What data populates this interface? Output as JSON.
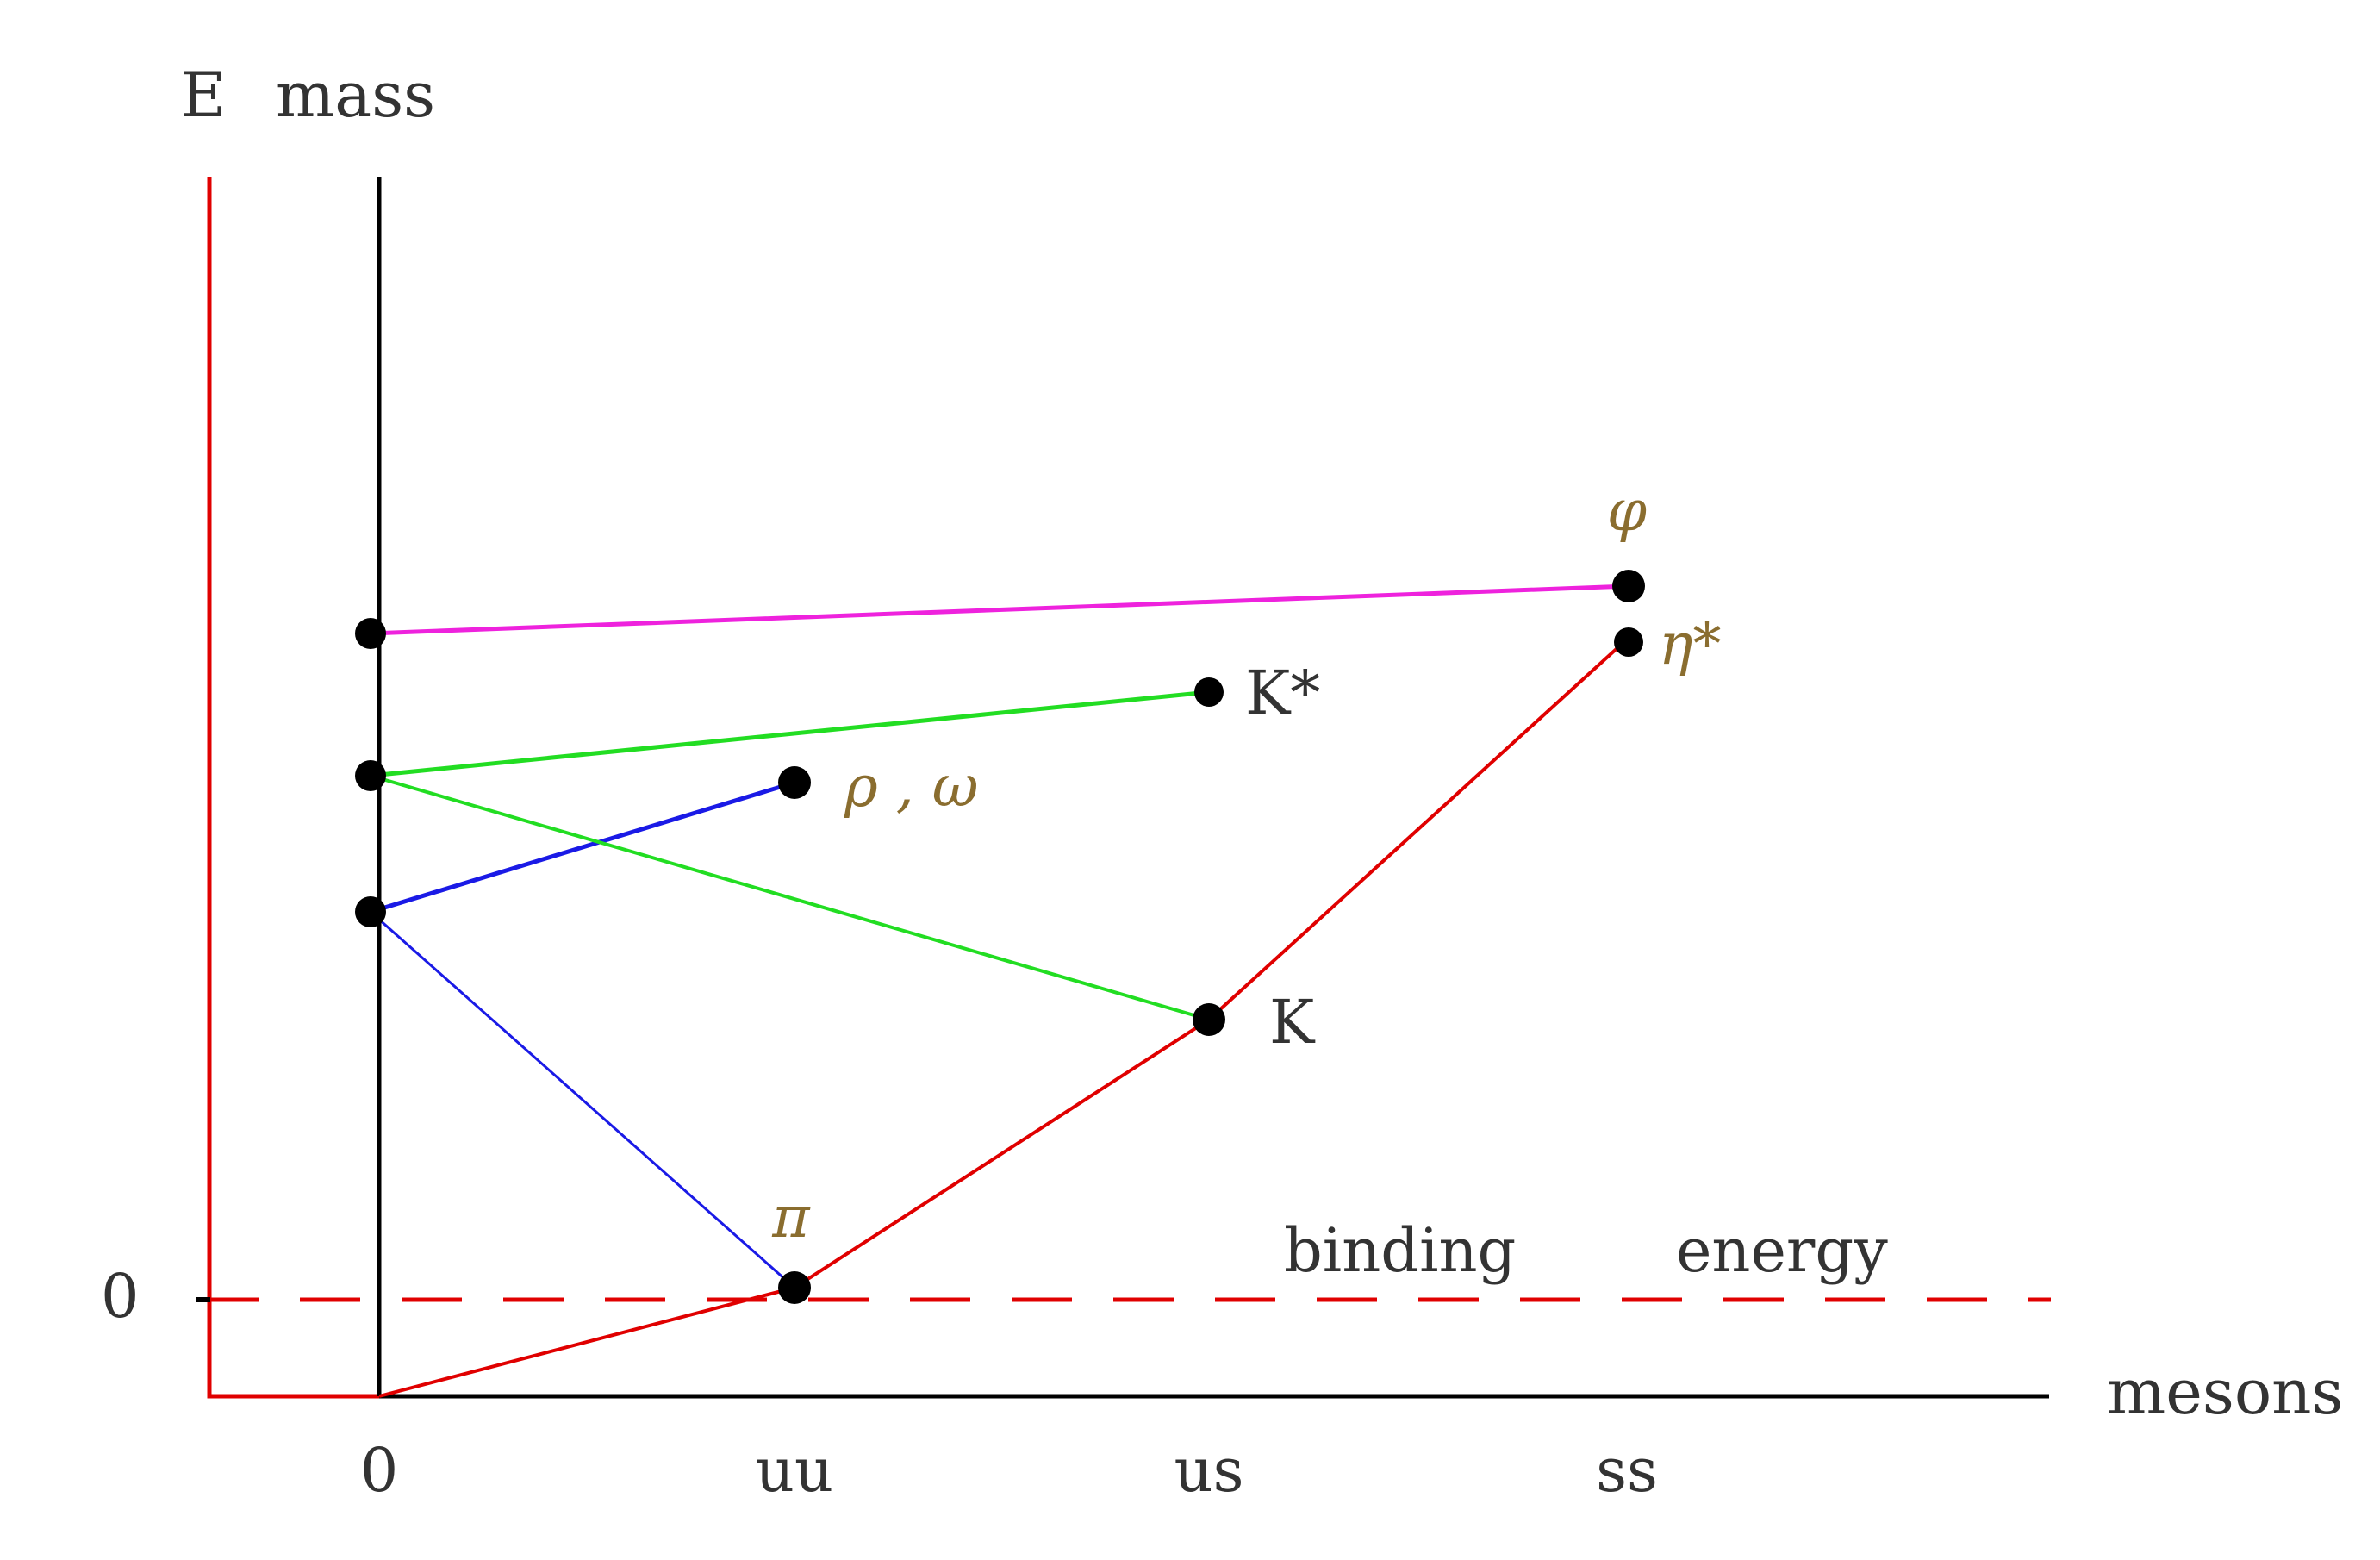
{
  "axes": {
    "y_axis_label_E": "E",
    "y_axis_label_mass": "mass",
    "x_axis_label": "mesons",
    "zero_level_label": "0",
    "x_ticks": [
      "0",
      "uu",
      "us",
      "ss"
    ]
  },
  "particles": {
    "pi": "π",
    "rho_omega": "ρ , ω",
    "K": "K",
    "K_star": "K*",
    "phi": "φ",
    "eta_star": "η*"
  },
  "annotation": {
    "binding": "binding",
    "energy": "energy"
  },
  "colors": {
    "red": "#e00000",
    "blue": "#1a1ae6",
    "green": "#22dd22",
    "magenta": "#ee22dd",
    "black": "#000000"
  }
}
